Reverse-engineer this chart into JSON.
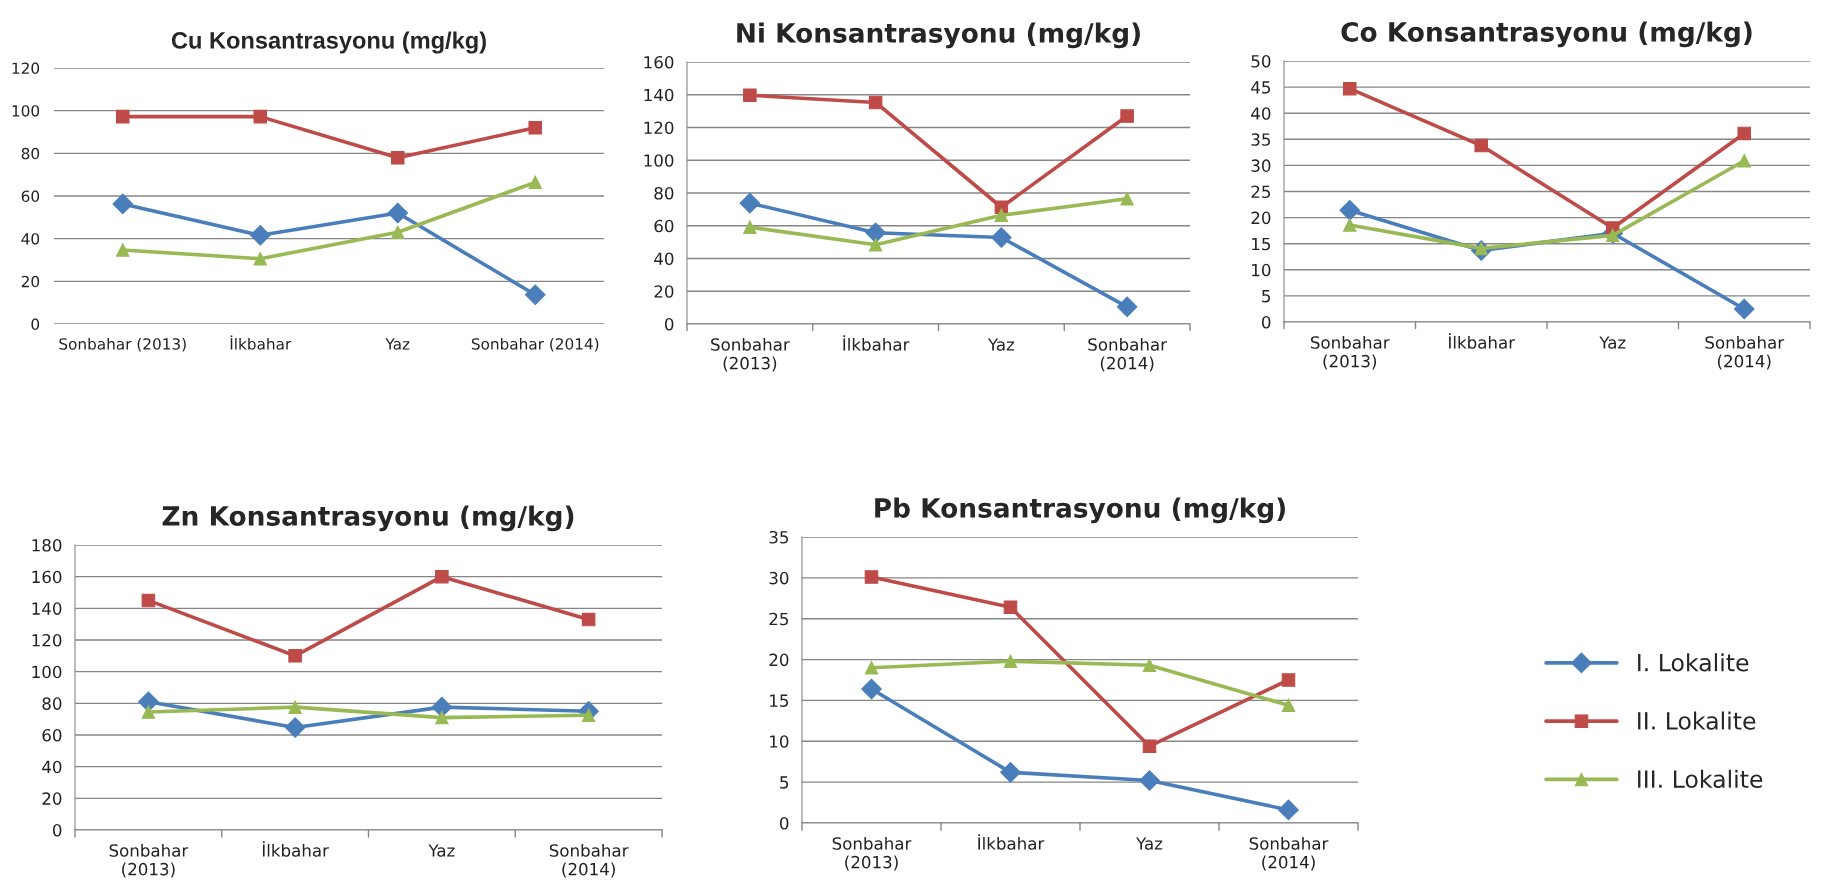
{
  "chart_data": [
    {
      "type": "line",
      "title": "Cu Konsantrasyonu (mg/kg)",
      "categories": [
        "Sonbahar (2013)",
        "İlkbahar",
        "Yaz",
        "Sonbahar (2014)"
      ],
      "ylim": [
        0,
        120
      ],
      "yticks": [
        0,
        20,
        40,
        60,
        80,
        100,
        120
      ],
      "grid": "y",
      "series": [
        {
          "color": "#4a7ebb",
          "marker": "diamond",
          "values": [
            56.3,
            41.6,
            52,
            13.7
          ]
        },
        {
          "color": "#be4b48",
          "marker": "square",
          "values": [
            97.2,
            97.2,
            77.9,
            92
          ]
        },
        {
          "color": "#98b954",
          "marker": "triangle",
          "values": [
            34.7,
            30.6,
            43,
            66.4
          ]
        }
      ]
    },
    {
      "type": "line",
      "title": "Ni Konsantrasyonu (mg/kg)",
      "categories": [
        "Sonbahar\n(2013)",
        "İlkbahar",
        "Yaz",
        "Sonbahar\n(2014)"
      ],
      "ylim": [
        0,
        160
      ],
      "yticks": [
        0,
        20,
        40,
        60,
        80,
        100,
        120,
        140,
        160
      ],
      "grid": "y",
      "series": [
        {
          "color": "#4a7ebb",
          "marker": "diamond",
          "values": [
            73.8,
            55.7,
            52.8,
            10.5
          ]
        },
        {
          "color": "#be4b48",
          "marker": "square",
          "values": [
            139.7,
            135.3,
            71.3,
            127
          ]
        },
        {
          "color": "#98b954",
          "marker": "triangle",
          "values": [
            59.1,
            48.4,
            66.4,
            76.5
          ]
        }
      ]
    },
    {
      "type": "line",
      "title": "Co Konsantrasyonu (mg/kg)",
      "categories": [
        "Sonbahar\n(2013)",
        "İlkbahar",
        "Yaz",
        "Sonbahar\n(2014)"
      ],
      "ylim": [
        0,
        50
      ],
      "yticks": [
        0,
        5,
        10,
        15,
        20,
        25,
        30,
        35,
        40,
        45,
        50
      ],
      "grid": "y",
      "series": [
        {
          "color": "#4a7ebb",
          "marker": "diamond",
          "values": [
            21.4,
            13.7,
            17,
            2.5
          ]
        },
        {
          "color": "#be4b48",
          "marker": "square",
          "values": [
            44.7,
            33.8,
            18,
            36.1
          ]
        },
        {
          "color": "#98b954",
          "marker": "triangle",
          "values": [
            18.6,
            14.1,
            16.6,
            30.9
          ]
        }
      ]
    },
    {
      "type": "line",
      "title": "Zn Konsantrasyonu (mg/kg)",
      "categories": [
        "Sonbahar\n(2013)",
        "İlkbahar",
        "Yaz",
        "Sonbahar\n(2014)"
      ],
      "ylim": [
        0,
        180
      ],
      "yticks": [
        0,
        20,
        40,
        60,
        80,
        100,
        120,
        140,
        160,
        180
      ],
      "grid": "y",
      "series": [
        {
          "color": "#4a7ebb",
          "marker": "diamond",
          "values": [
            81,
            64.7,
            77.6,
            75
          ]
        },
        {
          "color": "#be4b48",
          "marker": "square",
          "values": [
            145,
            110,
            160,
            133
          ]
        },
        {
          "color": "#98b954",
          "marker": "triangle",
          "values": [
            74.5,
            77.6,
            71,
            72.5
          ]
        }
      ]
    },
    {
      "type": "line",
      "title": "Pb Konsantrasyonu (mg/kg)",
      "categories": [
        "Sonbahar\n(2013)",
        "İlkbahar",
        "Yaz",
        "Sonbahar\n(2014)"
      ],
      "ylim": [
        0,
        35
      ],
      "yticks": [
        0,
        5,
        10,
        15,
        20,
        25,
        30,
        35
      ],
      "grid": "y",
      "legend": "right",
      "series": [
        {
          "name": "I. Lokalite",
          "color": "#4a7ebb",
          "marker": "diamond",
          "values": [
            16.4,
            6.2,
            5.2,
            1.6
          ]
        },
        {
          "name": "II. Lokalite",
          "color": "#be4b48",
          "marker": "square",
          "values": [
            30.1,
            26.4,
            9.4,
            17.5
          ]
        },
        {
          "name": "III. Lokalite",
          "color": "#98b954",
          "marker": "triangle",
          "values": [
            19,
            19.8,
            19.3,
            14.4
          ]
        }
      ]
    }
  ]
}
